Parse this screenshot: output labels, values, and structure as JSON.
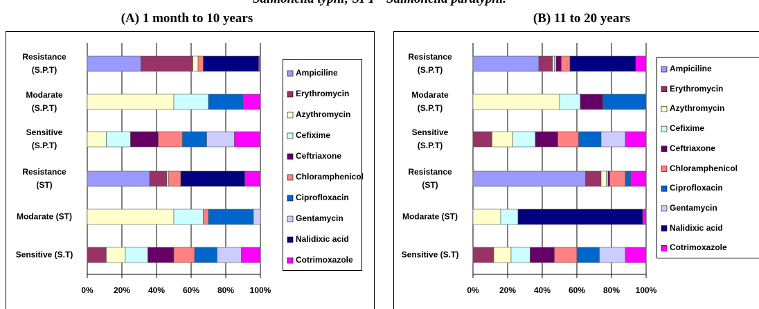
{
  "caption": "Salmonella typhi; SPT= Salmonella paratyphi.",
  "chart_data": [
    {
      "type": "bar",
      "orientation": "horizontal",
      "stacked": true,
      "title": "(A) 1 month to 10 years",
      "categories": [
        "Resistance\n(S.P.T)",
        "Modarate\n(S.P.T)",
        "Sensitive\n(S.P.T)",
        "Resistance\n(ST)",
        "Modarate (ST)",
        "Sensitive (S.T)"
      ],
      "series": [
        {
          "name": "Ampiciline",
          "color": "#9999ff",
          "values": [
            31,
            0,
            0,
            36,
            0,
            0
          ]
        },
        {
          "name": "Erythromycin",
          "color": "#993366",
          "values": [
            30,
            0,
            0,
            10,
            0,
            11
          ]
        },
        {
          "name": "Azythromycin",
          "color": "#ffffcc",
          "values": [
            3,
            50,
            11,
            1,
            50,
            11
          ]
        },
        {
          "name": "Cefixime",
          "color": "#ccffff",
          "values": [
            0,
            20,
            14,
            0,
            17,
            13
          ]
        },
        {
          "name": "Ceftriaxone",
          "color": "#660066",
          "values": [
            0,
            0,
            16,
            0,
            0,
            15
          ]
        },
        {
          "name": "Chloramphenicol",
          "color": "#ff8080",
          "values": [
            3,
            0,
            14,
            7,
            3,
            12
          ]
        },
        {
          "name": "Ciprofloxacin",
          "color": "#0066cc",
          "values": [
            0,
            20,
            14,
            0,
            26,
            13
          ]
        },
        {
          "name": "Gentamycin",
          "color": "#ccccff",
          "values": [
            0,
            0,
            16,
            0,
            4,
            14
          ]
        },
        {
          "name": "Nalidixic acid",
          "color": "#000080",
          "values": [
            32,
            0,
            0,
            37,
            0,
            0
          ]
        },
        {
          "name": "Cotrimoxazole",
          "color": "#ff00ff",
          "values": [
            1,
            10,
            15,
            9,
            0,
            11
          ]
        }
      ],
      "xlim": [
        0,
        100
      ],
      "xticks": [
        {
          "value": 0,
          "label": "0%"
        },
        {
          "value": 20,
          "label": "20%"
        },
        {
          "value": 40,
          "label": "40%"
        },
        {
          "value": 60,
          "label": "60%"
        },
        {
          "value": 80,
          "label": "80%"
        },
        {
          "value": 100,
          "label": "100%"
        }
      ],
      "grid": true,
      "legend": "right"
    },
    {
      "type": "bar",
      "orientation": "horizontal",
      "stacked": true,
      "title": "(B) 11 to 20 years",
      "categories": [
        "Resistance\n(S.P.T)",
        "Modarate\n(S.P.T)",
        "Sensitive\n(S.P.T)",
        "Resistance\n(ST)",
        "Modarate (ST)",
        "Sensitive (S.T)"
      ],
      "series": [
        {
          "name": "Ampiciline",
          "color": "#9999ff",
          "values": [
            38,
            0,
            0,
            65,
            0,
            0
          ]
        },
        {
          "name": "Erythromycin",
          "color": "#993366",
          "values": [
            8,
            0,
            11,
            9,
            0,
            12
          ]
        },
        {
          "name": "Azythromycin",
          "color": "#ffffcc",
          "values": [
            1,
            50,
            12,
            3,
            16,
            10
          ]
        },
        {
          "name": "Cefixime",
          "color": "#ccffff",
          "values": [
            1,
            12,
            13,
            1,
            10,
            11
          ]
        },
        {
          "name": "Ceftriaxone",
          "color": "#660066",
          "values": [
            3,
            13,
            13,
            1,
            0,
            14
          ]
        },
        {
          "name": "Chloramphenicol",
          "color": "#ff8080",
          "values": [
            5,
            0,
            12,
            9,
            0,
            13
          ]
        },
        {
          "name": "Ciprofloxacin",
          "color": "#0066cc",
          "values": [
            0,
            25,
            13,
            3,
            0,
            13
          ]
        },
        {
          "name": "Gentamycin",
          "color": "#ccccff",
          "values": [
            0,
            0,
            14,
            0,
            0,
            15
          ]
        },
        {
          "name": "Nalidixic acid",
          "color": "#000080",
          "values": [
            38,
            0,
            0,
            0,
            72,
            0
          ]
        },
        {
          "name": "Cotrimoxazole",
          "color": "#ff00ff",
          "values": [
            6,
            0,
            12,
            9,
            2,
            12
          ]
        }
      ],
      "xlim": [
        0,
        100
      ],
      "xticks": [
        {
          "value": 0,
          "label": "0%"
        },
        {
          "value": 20,
          "label": "20%"
        },
        {
          "value": 40,
          "label": "40%"
        },
        {
          "value": 60,
          "label": "60%"
        },
        {
          "value": 80,
          "label": "80%"
        },
        {
          "value": 100,
          "label": "100%"
        }
      ],
      "grid": true,
      "legend": "right"
    }
  ]
}
